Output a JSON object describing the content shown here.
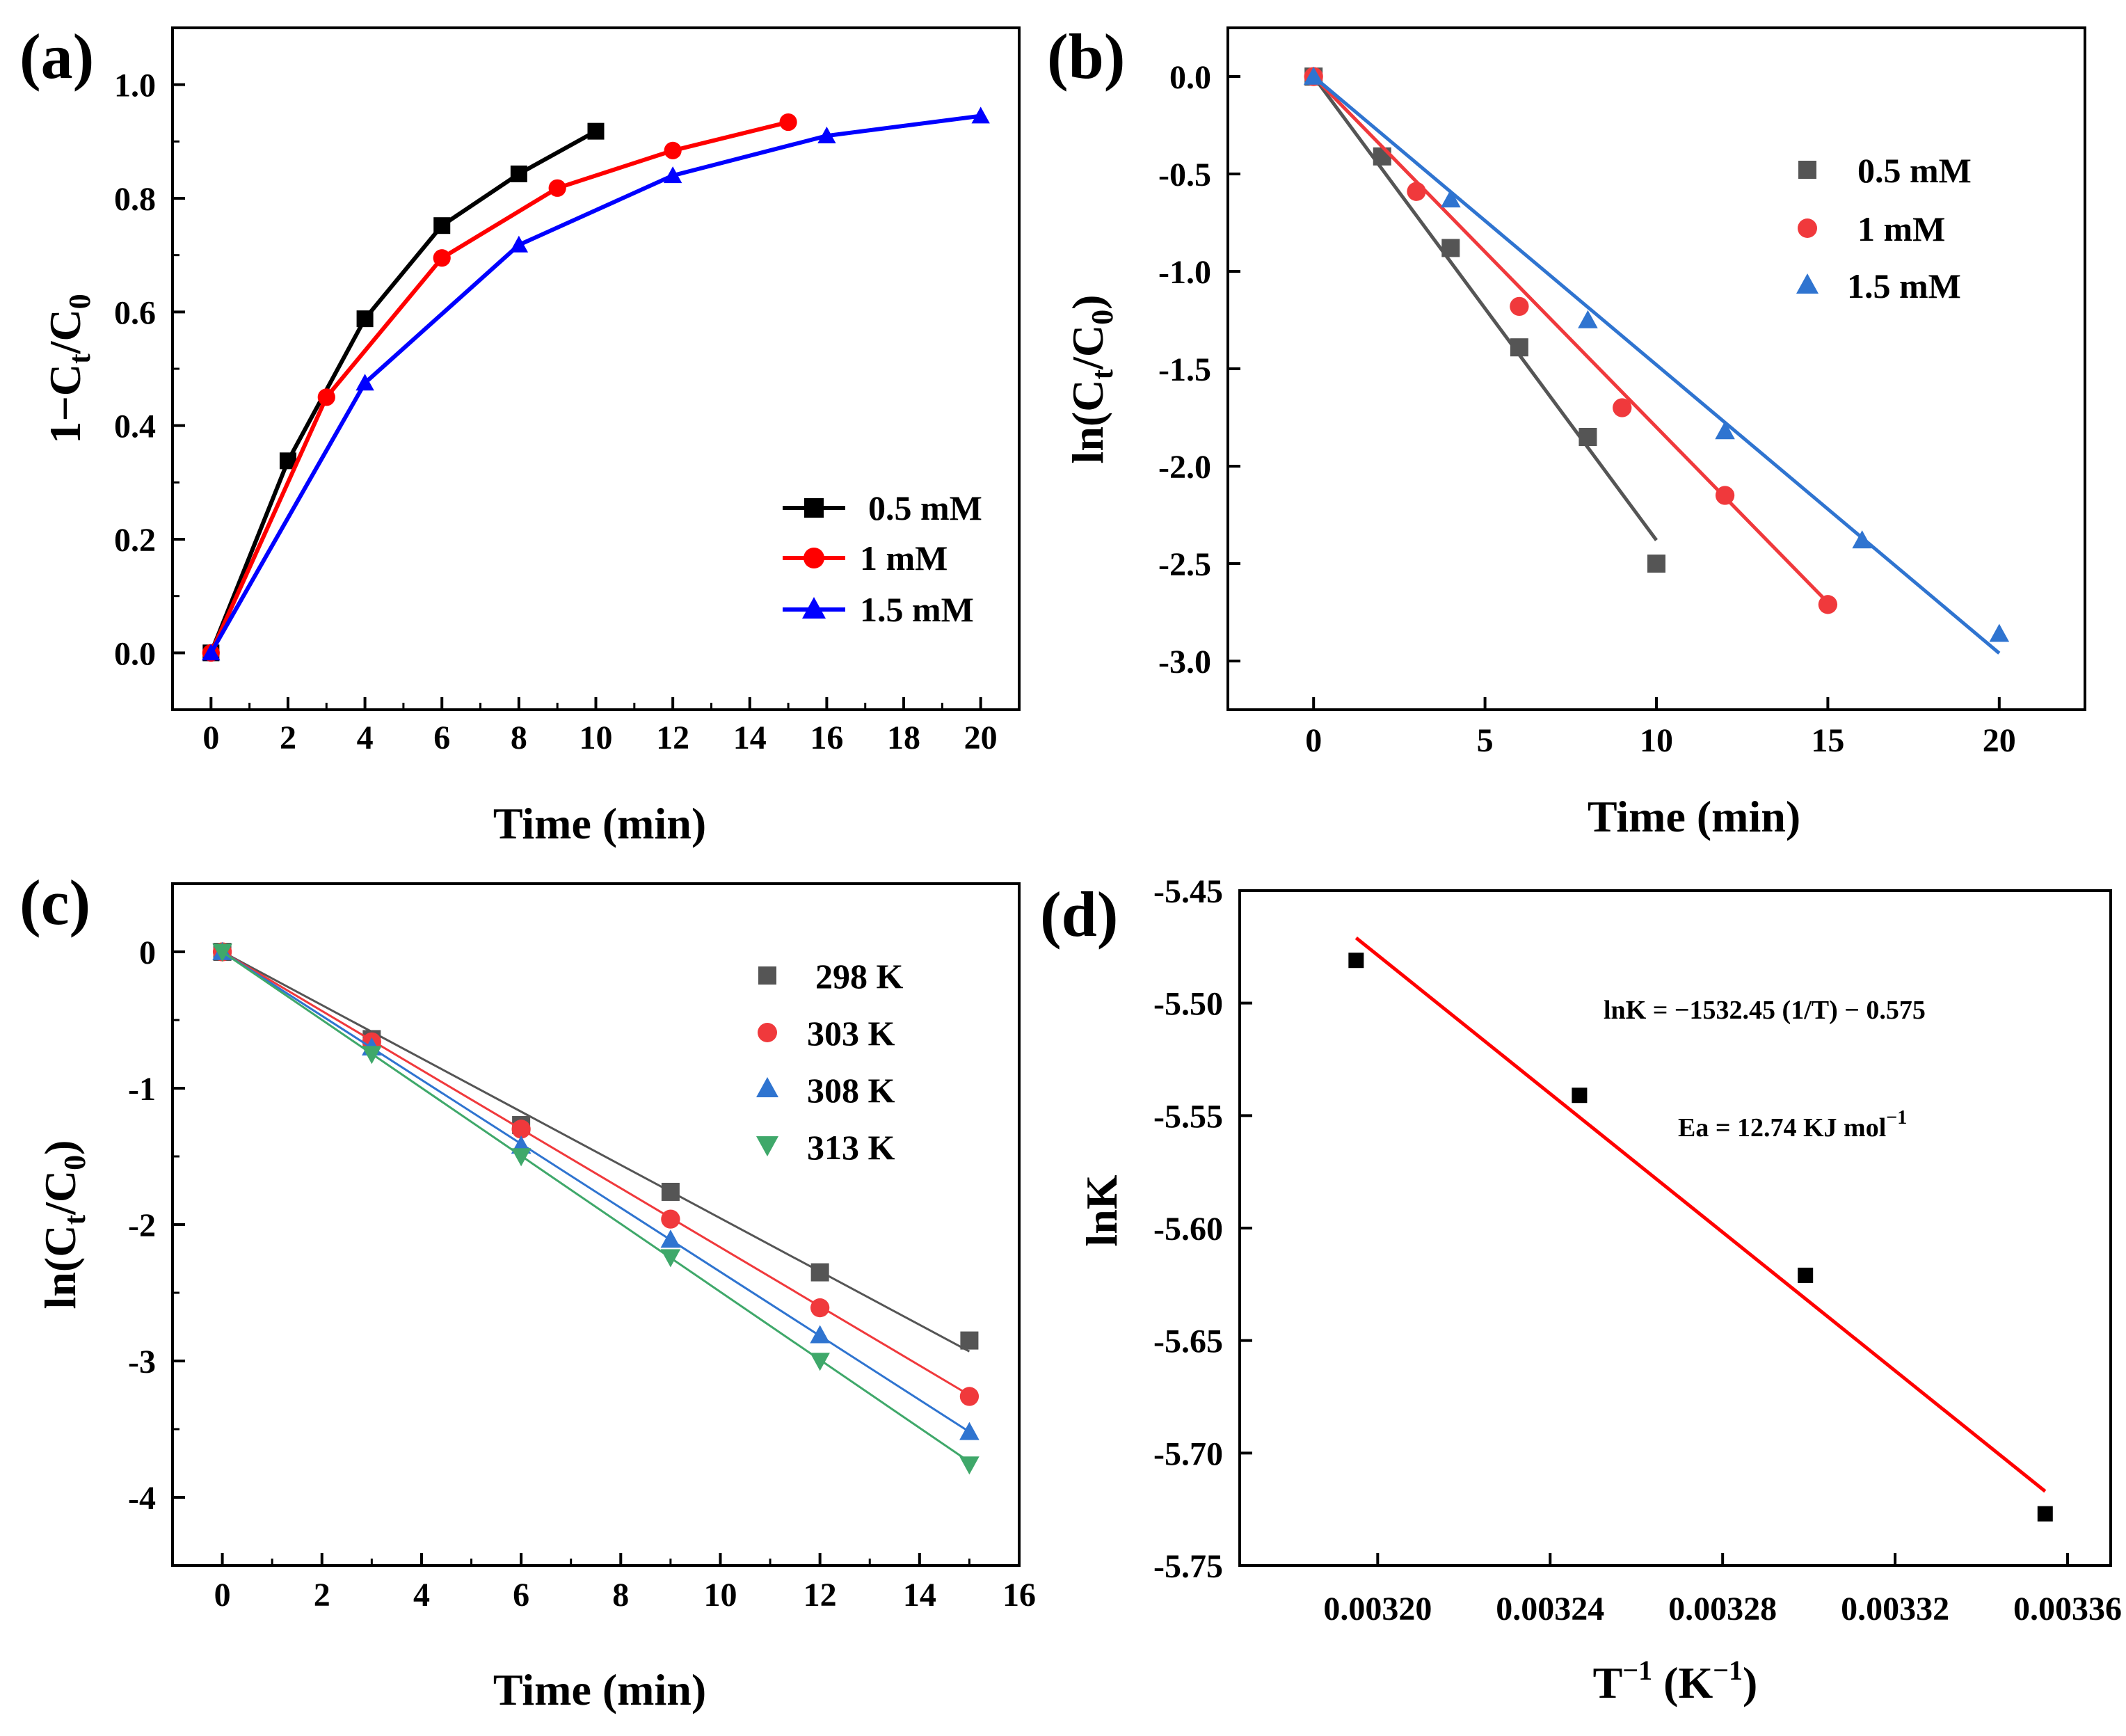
{
  "chart_data": [
    {
      "panel_label": "(a)",
      "type": "line",
      "title": "",
      "xlabel": "Time (min)",
      "ylabel": "1−C",
      "ylabel_sub1": "t",
      "ylabel_mid": "/C",
      "ylabel_sub2": "0",
      "xlim": [
        -1,
        21
      ],
      "ylim": [
        -0.1,
        1.1
      ],
      "xticks": [
        0,
        2,
        4,
        6,
        8,
        10,
        12,
        14,
        16,
        18,
        20
      ],
      "yticks": [
        0.0,
        0.2,
        0.4,
        0.6,
        0.8,
        1.0
      ],
      "xtick_labels": [
        "0",
        "2",
        "4",
        "6",
        "8",
        "10",
        "12",
        "14",
        "16",
        "18",
        "20"
      ],
      "ytick_labels": [
        "0.0",
        "0.2",
        "0.4",
        "0.6",
        "0.8",
        "1.0"
      ],
      "legend_position": "bottom-right",
      "series": [
        {
          "name": "0.5 mM",
          "color": "#000000",
          "marker": "square",
          "x": [
            0,
            2,
            4,
            6,
            8,
            10
          ],
          "y": [
            0.0,
            0.338,
            0.588,
            0.752,
            0.843,
            0.918
          ]
        },
        {
          "name": "1 mM",
          "color": "#ff0000",
          "marker": "circle",
          "x": [
            0,
            3,
            6,
            9,
            12,
            15
          ],
          "y": [
            0.0,
            0.45,
            0.695,
            0.818,
            0.884,
            0.934
          ]
        },
        {
          "name": "1.5 mM",
          "color": "#0000ff",
          "marker": "triangle-up",
          "x": [
            0,
            4,
            8,
            12,
            16,
            20
          ],
          "y": [
            0.0,
            0.475,
            0.718,
            0.84,
            0.91,
            0.945
          ]
        }
      ]
    },
    {
      "panel_label": "(b)",
      "type": "scatter",
      "title": "",
      "xlabel": "Time (min)",
      "ylabel": "ln(C",
      "ylabel_sub1": "t",
      "ylabel_mid": "/C",
      "ylabel_sub2": "0",
      "ylabel_end": ")",
      "xlim": [
        -2.5,
        22.5
      ],
      "ylim": [
        -3.25,
        0.25
      ],
      "xticks": [
        0,
        5,
        10,
        15,
        20
      ],
      "yticks": [
        0.0,
        -0.5,
        -1.0,
        -1.5,
        -2.0,
        -2.5,
        -3.0
      ],
      "xtick_labels": [
        "0",
        "5",
        "10",
        "15",
        "20"
      ],
      "ytick_labels": [
        "0.0",
        "-0.5",
        "-1.0",
        "-1.5",
        "-2.0",
        "-2.5",
        "-3.0"
      ],
      "legend_position": "top-right",
      "series": [
        {
          "name": "0.5 mM",
          "color": "#555555",
          "marker": "square",
          "x": [
            0,
            2,
            4,
            6,
            8,
            10
          ],
          "y": [
            0.0,
            -0.41,
            -0.88,
            -1.39,
            -1.85,
            -2.5
          ],
          "fit": [
            [
              0,
              0.0
            ],
            [
              10,
              -2.38
            ]
          ]
        },
        {
          "name": "1 mM",
          "color": "#f0393c",
          "marker": "circle",
          "x": [
            0,
            3,
            6,
            9,
            12,
            15
          ],
          "y": [
            0.0,
            -0.59,
            -1.18,
            -1.7,
            -2.15,
            -2.71
          ],
          "fit": [
            [
              0,
              0.0
            ],
            [
              15,
              -2.7
            ]
          ]
        },
        {
          "name": "1.5 mM",
          "color": "#2f74d0",
          "marker": "triangle-up",
          "x": [
            0,
            4,
            8,
            12,
            16,
            20
          ],
          "y": [
            0.0,
            -0.63,
            -1.25,
            -1.82,
            -2.38,
            -2.86
          ],
          "fit": [
            [
              0,
              0.0
            ],
            [
              20,
              -2.96
            ]
          ]
        }
      ]
    },
    {
      "panel_label": "(c)",
      "type": "scatter",
      "title": "",
      "xlabel": "Time (min)",
      "ylabel": "ln(C",
      "ylabel_sub1": "t",
      "ylabel_mid": "/C",
      "ylabel_sub2": "0",
      "ylabel_end": ")",
      "xlim": [
        -1,
        16
      ],
      "ylim": [
        -4.5,
        0.5
      ],
      "xticks": [
        0,
        2,
        4,
        6,
        8,
        10,
        12,
        14,
        16
      ],
      "yticks": [
        0,
        -1,
        -2,
        -3,
        -4
      ],
      "xtick_labels": [
        "0",
        "2",
        "4",
        "6",
        "8",
        "10",
        "12",
        "14",
        "16"
      ],
      "ytick_labels": [
        "0",
        "-1",
        "-2",
        "-3",
        "-4"
      ],
      "legend_position": "top-right",
      "series": [
        {
          "name": "298 K",
          "color": "#555555",
          "marker": "square",
          "x": [
            0,
            3,
            6,
            9,
            12,
            15
          ],
          "y": [
            0.0,
            -0.64,
            -1.27,
            -1.76,
            -2.35,
            -2.85
          ],
          "fit": [
            [
              0,
              0.0
            ],
            [
              15,
              -2.93
            ]
          ]
        },
        {
          "name": "303 K",
          "color": "#f0393c",
          "marker": "circle",
          "x": [
            0,
            3,
            6,
            9,
            12,
            15
          ],
          "y": [
            0.0,
            -0.66,
            -1.3,
            -1.96,
            -2.61,
            -3.26
          ],
          "fit": [
            [
              0,
              0.0
            ],
            [
              15,
              -3.25
            ]
          ]
        },
        {
          "name": "308 K",
          "color": "#2f74d0",
          "marker": "triangle-up",
          "x": [
            0,
            3,
            6,
            9,
            12,
            15
          ],
          "y": [
            0.0,
            -0.7,
            -1.42,
            -2.11,
            -2.81,
            -3.52
          ],
          "fit": [
            [
              0,
              0.0
            ],
            [
              15,
              -3.52
            ]
          ]
        },
        {
          "name": "313 K",
          "color": "#3fa86a",
          "marker": "triangle-down",
          "x": [
            0,
            3,
            6,
            9,
            12,
            15
          ],
          "y": [
            0.0,
            -0.75,
            -1.5,
            -2.24,
            -3.0,
            -3.76
          ],
          "fit": [
            [
              0,
              0.0
            ],
            [
              15,
              -3.74
            ]
          ]
        }
      ]
    },
    {
      "panel_label": "(d)",
      "type": "scatter",
      "title": "",
      "xlabel": "T",
      "xlabel_sup1": "−1",
      "xlabel_mid": " (K",
      "xlabel_sup2": "−1",
      "xlabel_end": ")",
      "ylabel": "lnK",
      "xlim": [
        0.003168,
        0.00337
      ],
      "ylim": [
        -5.75,
        -5.45
      ],
      "xticks": [
        0.0032,
        0.00324,
        0.00328,
        0.00332,
        0.00336
      ],
      "yticks": [
        -5.45,
        -5.5,
        -5.55,
        -5.6,
        -5.65,
        -5.7,
        -5.75
      ],
      "xtick_labels": [
        "0.00320",
        "0.00324",
        "0.00328",
        "0.00332",
        "0.00336"
      ],
      "ytick_labels": [
        "-5.45",
        "-5.50",
        "-5.55",
        "-5.60",
        "-5.65",
        "-5.70",
        "-5.75"
      ],
      "legend_position": "none",
      "annotations": {
        "equation": "lnK = −1532.45 (1/T) − 0.575",
        "ea": "Ea = 12.74 KJ mol",
        "ea_sup": "−1"
      },
      "series": [
        {
          "name": "lnK",
          "color": "#000000",
          "marker": "square",
          "x": [
            0.003195,
            0.0032468,
            0.0032992,
            0.0033548
          ],
          "y": [
            -5.481,
            -5.541,
            -5.621,
            -5.727
          ],
          "fit": [
            [
              0.003195,
              -5.471
            ],
            [
              0.0033548,
              -5.717
            ]
          ],
          "fit_color": "#ff0000"
        }
      ]
    }
  ]
}
